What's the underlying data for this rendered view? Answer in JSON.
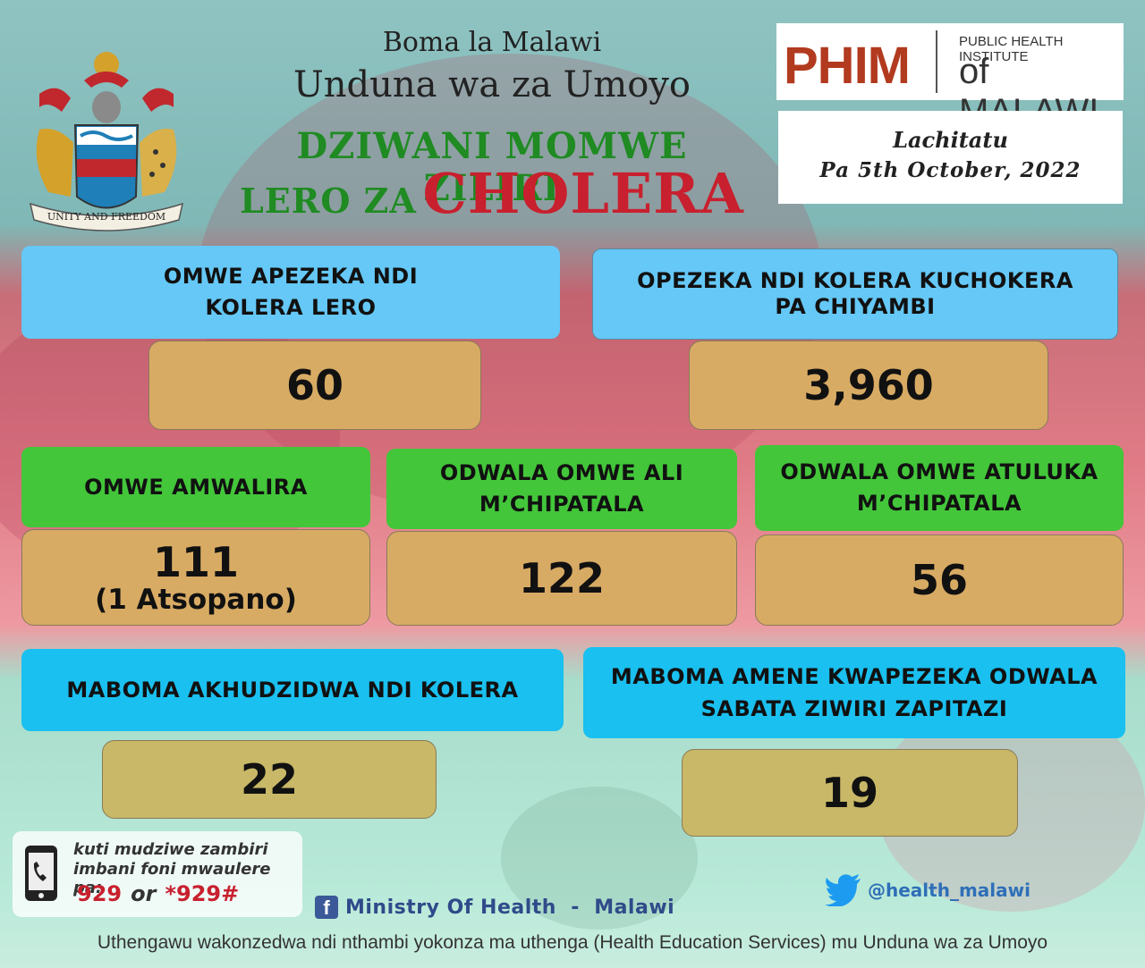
{
  "header": {
    "gov_line1": "Boma la Malawi",
    "gov_line2": "Unduna wa za Umoyo",
    "title_line1": "DZIWANI MOMWE ZILIRI",
    "title_line2_prefix": "LERO ZA",
    "title_line2_emph": "CHOLERA",
    "emblem_motto": "UNITY AND FREEDOM",
    "emblem_icon": "malawi-coat-of-arms-icon"
  },
  "logo": {
    "mark": "PHIM",
    "sub": "PUBLIC HEALTH INSTITUTE",
    "of": "of MALAWI"
  },
  "date": {
    "day": "Lachitatu",
    "date": "Pa 5th October, 2022"
  },
  "stats": {
    "new_cases": {
      "label_l1": "OMWE APEZEKA NDI",
      "label_l2": "KOLERA LERO",
      "value": "60"
    },
    "cumulative_cases": {
      "label_l1": "OPEZEKA NDI KOLERA KUCHOKERA",
      "label_l2": "PA CHIYAMBI",
      "value": "3,960"
    },
    "deaths": {
      "label": "OMWE AMWALIRA",
      "value": "111",
      "value_sub": "(1 Atsopano)"
    },
    "admitted": {
      "label_l1": "ODWALA OMWE ALI",
      "label_l2": "M’CHIPATALA",
      "value": "122"
    },
    "discharged": {
      "label_l1": "ODWALA OMWE ATULUKA",
      "label_l2": "M’CHIPATALA",
      "value": "56"
    },
    "districts_affected": {
      "label": "MABOMA AKHUDZIDWA NDI KOLERA",
      "value": "22"
    },
    "districts_recent": {
      "label_l1": "MABOMA AMENE KWAPEZEKA ODWALA",
      "label_l2": "SABATA ZIWIRI ZAPITAZI",
      "value": "19"
    }
  },
  "contact": {
    "line1": "kuti mudziwe zambiri",
    "line2": "imbani foni mwaulere pa:",
    "num1": "929",
    "or": "or",
    "num2": "*929#",
    "icon": "phone-icon"
  },
  "social": {
    "facebook": "Ministry Of Health  -  Malawi",
    "facebook_icon": "facebook-icon",
    "twitter": "@health_malawi",
    "twitter_icon": "twitter-icon"
  },
  "footer": "Uthengawu wakonzedwa ndi nthambi yokonza ma uthenga (Health Education Services) mu Unduna wa za Umoyo",
  "colors": {
    "title_green": "#1f8b22",
    "cholera_red": "#c8202e",
    "label_blue": "#65c8f6",
    "label_cyan": "#1ac0ef",
    "label_green": "#43c63a",
    "value_tan": "#d8ab64",
    "value_olive": "#c8b867"
  }
}
